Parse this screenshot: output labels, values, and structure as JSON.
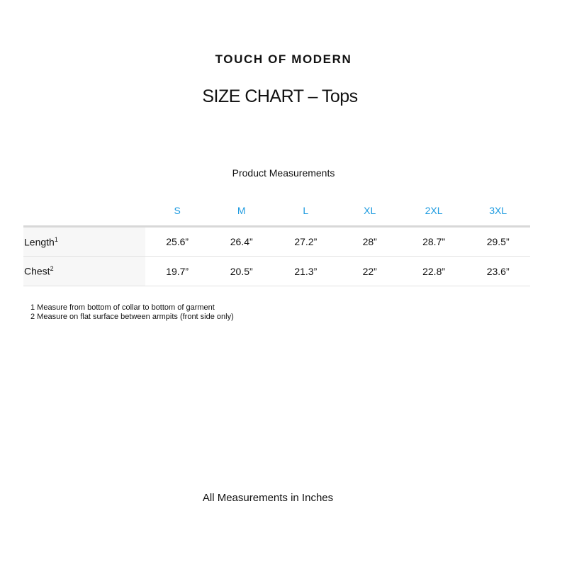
{
  "brand": "TOUCH OF MODERN",
  "title": "SIZE CHART – Tops",
  "subtitle": "Product Measurements",
  "sizes": [
    "S",
    "M",
    "L",
    "XL",
    "2XL",
    "3XL"
  ],
  "rows": [
    {
      "label": "Length",
      "sup": "1",
      "values": [
        "25.6”",
        "26.4”",
        "27.2”",
        "28”",
        "28.7”",
        "29.5”"
      ]
    },
    {
      "label": "Chest",
      "sup": "2",
      "values": [
        "19.7”",
        "20.5”",
        "21.3”",
        "22”",
        "22.8”",
        "23.6”"
      ]
    }
  ],
  "notes": [
    "1 Measure from bottom of collar to bottom of garment",
    "2 Measure on flat surface between armpits (front side only)"
  ],
  "footer": "All Measurements in Inches",
  "colors": {
    "size_header": "#1e9be0"
  }
}
